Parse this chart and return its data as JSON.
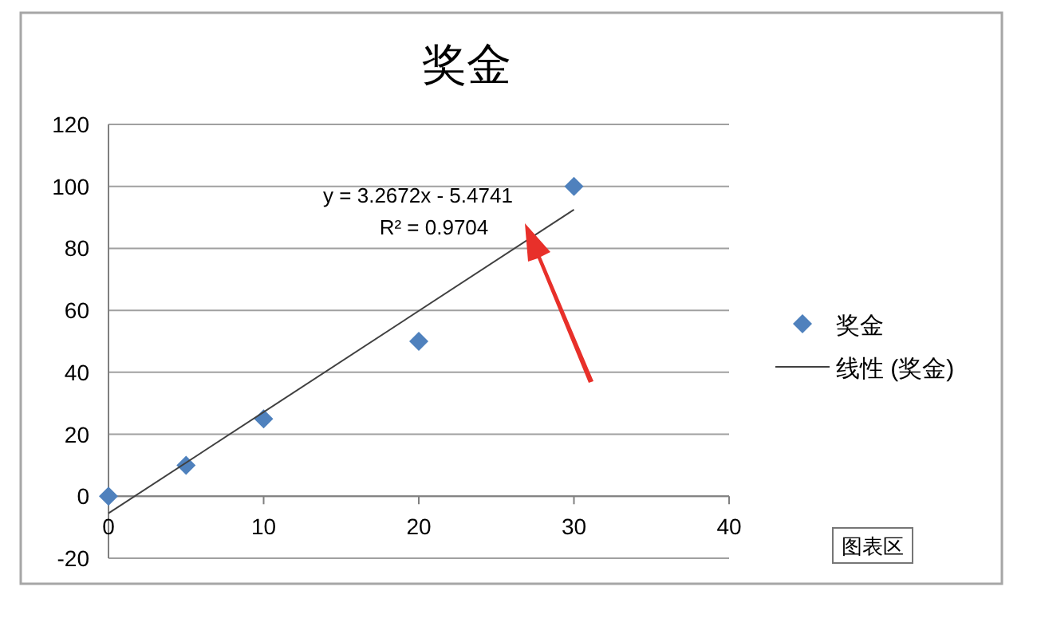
{
  "chart_data": {
    "type": "scatter",
    "title": "奖金",
    "series": [
      {
        "name": "奖金",
        "color": "#4f81bd",
        "x": [
          0,
          5,
          10,
          20,
          30
        ],
        "values": [
          0,
          10,
          25,
          50,
          100
        ],
        "marker": "diamond"
      },
      {
        "name": "线性 (奖金)",
        "type": "line",
        "color": "#404040",
        "x": [
          0,
          30
        ],
        "values": [
          -5.5,
          92.5
        ],
        "marker": "none"
      }
    ],
    "xlim": [
      0,
      40
    ],
    "xticks": [
      0,
      10,
      20,
      30,
      40
    ],
    "ylim": [
      -20,
      120
    ],
    "yticks": [
      -20,
      0,
      20,
      40,
      60,
      80,
      100,
      120
    ],
    "grid": "y",
    "legend": "right",
    "annotations": [
      "y = 3.2672x - 5.4741",
      "R² = 0.9704",
      "图表区"
    ]
  }
}
